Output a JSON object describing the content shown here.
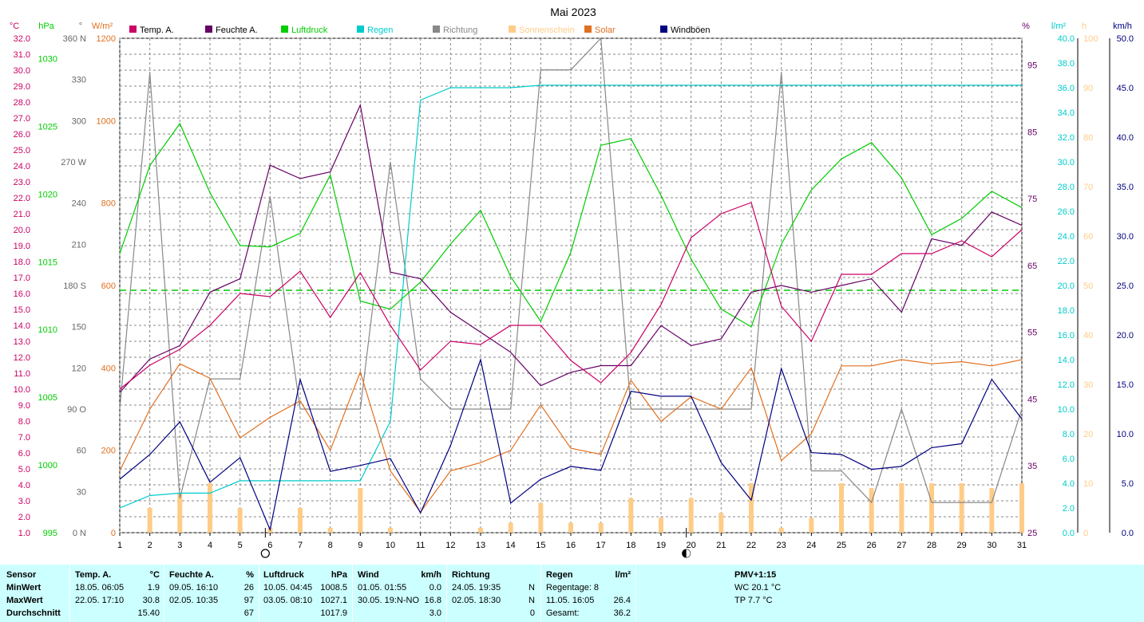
{
  "chart_data": {
    "type": "line",
    "title": "Mai 2023",
    "x": [
      1,
      2,
      3,
      4,
      5,
      6,
      7,
      8,
      9,
      10,
      11,
      12,
      13,
      14,
      15,
      16,
      17,
      18,
      19,
      20,
      21,
      22,
      23,
      24,
      25,
      26,
      27,
      28,
      29,
      30,
      31
    ],
    "axes": {
      "temp": {
        "unit": "°C",
        "min": 1.0,
        "max": 32.0,
        "step": 1.0,
        "color": "#cc0066"
      },
      "pressure": {
        "unit": "hPa",
        "min": 995,
        "max": 1031.5,
        "ticks": [
          995,
          1000,
          1005,
          1010,
          1015,
          1020,
          1025,
          1030
        ],
        "color": "#00cc00"
      },
      "direction": {
        "unit": "°",
        "min": 0,
        "max": 360,
        "ticks": [
          {
            "v": 0,
            "t": "0 N"
          },
          {
            "v": 30,
            "t": "30"
          },
          {
            "v": 60,
            "t": "60"
          },
          {
            "v": 90,
            "t": "90 O"
          },
          {
            "v": 120,
            "t": "120"
          },
          {
            "v": 150,
            "t": "150"
          },
          {
            "v": 180,
            "t": "180 S"
          },
          {
            "v": 210,
            "t": "210"
          },
          {
            "v": 240,
            "t": "240"
          },
          {
            "v": 270,
            "t": "270 W"
          },
          {
            "v": 300,
            "t": "300"
          },
          {
            "v": 330,
            "t": "330"
          },
          {
            "v": 360,
            "t": "360 N"
          }
        ],
        "color": "#666666"
      },
      "solar": {
        "unit": "W/m²",
        "min": 0,
        "max": 1200,
        "ticks": [
          0,
          200,
          400,
          600,
          800,
          1000,
          1200
        ],
        "color": "#e07020"
      },
      "humidity": {
        "unit": "%",
        "min": 25,
        "max": 99,
        "ticks": [
          25,
          35,
          45,
          55,
          65,
          75,
          85,
          95
        ],
        "color": "#660066"
      },
      "rain": {
        "unit": "l/m²",
        "min": 0,
        "max": 40,
        "step": 2,
        "color": "#00cccc"
      },
      "sunshine": {
        "unit": "h",
        "min": 0,
        "max": 100,
        "step": 10,
        "color": "#ffcc88"
      },
      "gust": {
        "unit": "km/h",
        "min": 0,
        "max": 50,
        "step": 5,
        "color": "#000080"
      }
    },
    "legend": [
      {
        "label": "Temp. A.",
        "color": "#cc0066"
      },
      {
        "label": "Feuchte A.",
        "color": "#660066"
      },
      {
        "label": "Luftdruck",
        "color": "#00cc00"
      },
      {
        "label": "Regen",
        "color": "#00cccc"
      },
      {
        "label": "Richtung",
        "color": "#888888"
      },
      {
        "label": "Sonnenschein",
        "color": "#ffcc88"
      },
      {
        "label": "Solar",
        "color": "#e07020"
      },
      {
        "label": "Windböen",
        "color": "#000080"
      }
    ],
    "series": [
      {
        "name": "Temp. A.",
        "axis": "temp",
        "color": "#cc0066",
        "values": [
          10.0,
          11.5,
          12.5,
          14.0,
          16.0,
          15.8,
          17.4,
          14.5,
          17.3,
          14.0,
          11.2,
          13.0,
          12.8,
          14.0,
          14.0,
          11.8,
          10.4,
          12.3,
          15.3,
          19.5,
          21.0,
          21.7,
          15.2,
          13.0,
          17.2,
          17.2,
          18.5,
          18.5,
          19.3,
          18.3,
          20.0
        ]
      },
      {
        "name": "Feuchte A.",
        "axis": "humidity",
        "color": "#660066",
        "values": [
          46,
          51,
          53,
          61,
          63,
          80,
          78,
          79,
          89,
          64,
          63,
          58,
          55,
          52,
          47,
          49,
          50,
          50,
          56,
          53,
          54,
          61,
          62,
          61,
          62,
          63,
          58,
          69,
          68,
          73,
          71
        ]
      },
      {
        "name": "Luftdruck",
        "axis": "pressure",
        "color": "#00cc00",
        "values": [
          1015.6,
          1022.1,
          1025.2,
          1020.1,
          1016.2,
          1016.1,
          1017.1,
          1021.4,
          1012.1,
          1011.5,
          1013.5,
          1016.3,
          1018.8,
          1013.9,
          1010.6,
          1015.7,
          1023.6,
          1024.1,
          1019.9,
          1015.2,
          1011.5,
          1010.2,
          1016.3,
          1020.3,
          1022.6,
          1023.8,
          1021.2,
          1017.0,
          1018.2,
          1020.2,
          1019.0
        ]
      },
      {
        "name": "Regen",
        "axis": "rain",
        "color": "#00cccc",
        "values": [
          2.0,
          3.0,
          3.2,
          3.2,
          4.2,
          4.2,
          4.2,
          4.2,
          4.2,
          9.0,
          35.0,
          36.0,
          36.0,
          36.0,
          36.2,
          36.2,
          36.2,
          36.2,
          36.2,
          36.2,
          36.2,
          36.2,
          36.2,
          36.2,
          36.2,
          36.2,
          36.2,
          36.2,
          36.2,
          36.2,
          36.2
        ]
      },
      {
        "name": "Richtung",
        "axis": "direction",
        "color": "#888888",
        "values": [
          90,
          335,
          25,
          112,
          112,
          245,
          90,
          90,
          90,
          270,
          112,
          90,
          90,
          90,
          337,
          337,
          360,
          90,
          90,
          90,
          90,
          90,
          335,
          45,
          45,
          22,
          90,
          22,
          22,
          22,
          90
        ]
      },
      {
        "name": "Solar",
        "axis": "solar",
        "color": "#e07020",
        "values": [
          150,
          300,
          410,
          375,
          230,
          280,
          320,
          200,
          390,
          150,
          50,
          150,
          170,
          200,
          310,
          205,
          190,
          370,
          270,
          330,
          300,
          400,
          175,
          240,
          405,
          405,
          420,
          410,
          415,
          405,
          420
        ]
      },
      {
        "name": "Windböen",
        "axis": "gust",
        "color": "#000080",
        "values": [
          5.4,
          7.9,
          11.2,
          5.1,
          7.6,
          0.3,
          15.5,
          6.2,
          6.8,
          7.5,
          2.0,
          8.8,
          17.5,
          3.0,
          5.4,
          6.7,
          6.3,
          14.3,
          13.8,
          13.8,
          7.1,
          3.3,
          16.6,
          8.1,
          7.9,
          6.4,
          6.7,
          8.6,
          9.0,
          15.5,
          11.5
        ]
      }
    ],
    "sunshine_bars": [
      0,
      5,
      8,
      10,
      5,
      1,
      5,
      1,
      9,
      1,
      0,
      0,
      1,
      2,
      6,
      2,
      2,
      7,
      3,
      7,
      4,
      10,
      1,
      3,
      10,
      9,
      10,
      10,
      10,
      9,
      10
    ],
    "reference_line": {
      "axis": "temp",
      "value": 16.2,
      "color": "#00cc00",
      "style": "dashed"
    },
    "moon_markers": [
      {
        "x": 6,
        "phase": "full"
      },
      {
        "x": 20,
        "phase": "new"
      }
    ],
    "grid": true
  },
  "stats": {
    "sensor": {
      "h": "Sensor",
      "r1": "MinWert",
      "r2": "MaxWert",
      "r3": "Durchschnitt"
    },
    "temp": {
      "h": "Temp. A.",
      "u": "°C",
      "r1_t": "18.05.  06:05",
      "r1_v": "1.9",
      "r2_t": "22.05.  17:10",
      "r2_v": "30.8",
      "r3_v": "15.40"
    },
    "hum": {
      "h": "Feuchte A.",
      "u": "%",
      "r1_t": "09.05.  16:10",
      "r1_v": "26",
      "r2_t": "02.05.  10:35",
      "r2_v": "97",
      "r3_v": "67"
    },
    "press": {
      "h": "Luftdruck",
      "u": "hPa",
      "r1_t": "10.05.  04:45",
      "r1_v": "1008.5",
      "r2_t": "03.05.  08:10",
      "r2_v": "1027.1",
      "r3_v": "1017.9"
    },
    "wind": {
      "h": "Wind",
      "u": "km/h",
      "r1_t": "01.05.  01:55",
      "r1_v": "0.0",
      "r2_t": "30.05.  19:N-NO",
      "r2_v": "16.8",
      "r3_v": "3.0"
    },
    "dir": {
      "h": "Richtung",
      "r1_t": "24.05.  19:35",
      "r1_v": "N",
      "r2_t": "02.05.  18:30",
      "r2_v": "N",
      "r3_v": "0"
    },
    "rain": {
      "h": "Regen",
      "u": "l/m²",
      "r1_t": "Regentage: 8",
      "r2_t": "11.05.  16:05",
      "r2_v": "26.4",
      "r3_t": "Gesamt:",
      "r3_v": "36.2"
    },
    "pmv": {
      "h": "PMV+1:15",
      "r1": "WC 20.1 °C",
      "r2": "TP 7.7 °C"
    }
  }
}
